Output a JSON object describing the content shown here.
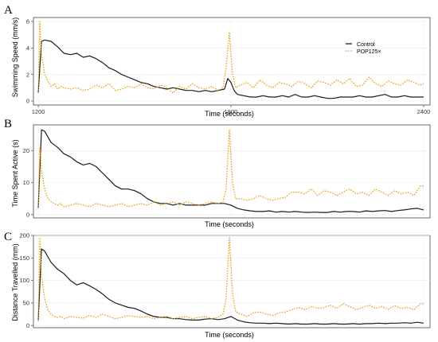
{
  "chart_data": [
    {
      "type": "line",
      "panel_label": "A",
      "xlabel": "Time (seconds)",
      "ylabel": "Swimming Speed (mm/s)",
      "xlim": [
        1185,
        2420
      ],
      "ylim": [
        -0.3,
        6.3
      ],
      "xticks": [
        1200,
        1800,
        2400
      ],
      "yticks": [
        0,
        2,
        4,
        6
      ],
      "grid": true,
      "legend_position": "top-right",
      "legend_entries": [
        "Control",
        "POP125×"
      ],
      "series": [
        {
          "name": "Control",
          "color": "#1a1a1a",
          "style": "solid",
          "x": [
            1200,
            1210,
            1220,
            1240,
            1260,
            1280,
            1300,
            1320,
            1340,
            1360,
            1380,
            1400,
            1420,
            1440,
            1460,
            1480,
            1500,
            1520,
            1540,
            1560,
            1580,
            1600,
            1620,
            1640,
            1660,
            1680,
            1700,
            1720,
            1740,
            1760,
            1780,
            1790,
            1800,
            1810,
            1820,
            1840,
            1860,
            1880,
            1900,
            1920,
            1940,
            1960,
            1980,
            2000,
            2020,
            2040,
            2060,
            2080,
            2100,
            2120,
            2140,
            2160,
            2180,
            2200,
            2220,
            2240,
            2260,
            2280,
            2300,
            2320,
            2340,
            2360,
            2380,
            2400
          ],
          "y": [
            0.6,
            4.5,
            4.6,
            4.5,
            4.1,
            3.6,
            3.5,
            3.6,
            3.3,
            3.4,
            3.2,
            2.9,
            2.5,
            2.3,
            2.0,
            1.8,
            1.6,
            1.4,
            1.3,
            1.1,
            1.0,
            0.9,
            1.0,
            0.9,
            0.8,
            0.8,
            0.7,
            0.8,
            0.7,
            0.8,
            0.9,
            1.7,
            1.4,
            0.8,
            0.5,
            0.4,
            0.3,
            0.3,
            0.4,
            0.3,
            0.3,
            0.4,
            0.3,
            0.5,
            0.3,
            0.3,
            0.4,
            0.3,
            0.2,
            0.2,
            0.3,
            0.3,
            0.3,
            0.4,
            0.3,
            0.3,
            0.4,
            0.5,
            0.3,
            0.3,
            0.4,
            0.3,
            0.3,
            0.3
          ]
        },
        {
          "name": "POP125×",
          "color": "#e8a317",
          "style": "dotted",
          "x": [
            1200,
            1205,
            1210,
            1220,
            1230,
            1240,
            1250,
            1260,
            1270,
            1280,
            1300,
            1320,
            1340,
            1360,
            1380,
            1400,
            1420,
            1440,
            1460,
            1480,
            1500,
            1520,
            1540,
            1560,
            1580,
            1600,
            1620,
            1640,
            1660,
            1680,
            1700,
            1720,
            1740,
            1760,
            1775,
            1785,
            1795,
            1805,
            1815,
            1830,
            1850,
            1870,
            1890,
            1910,
            1930,
            1950,
            1970,
            1990,
            2010,
            2030,
            2050,
            2070,
            2090,
            2110,
            2130,
            2150,
            2170,
            2190,
            2210,
            2230,
            2250,
            2270,
            2290,
            2310,
            2330,
            2350,
            2370,
            2390,
            2400
          ],
          "y": [
            0.6,
            6.0,
            3.5,
            2.0,
            1.5,
            1.1,
            1.3,
            0.9,
            1.1,
            1.0,
            0.9,
            1.0,
            0.8,
            0.9,
            1.2,
            1.0,
            1.3,
            0.8,
            0.9,
            1.1,
            1.0,
            1.3,
            1.0,
            0.9,
            1.2,
            1.0,
            0.6,
            1.1,
            0.9,
            1.3,
            1.0,
            0.9,
            1.1,
            0.8,
            1.0,
            2.5,
            5.2,
            2.0,
            1.0,
            1.2,
            1.4,
            1.0,
            1.6,
            1.2,
            1.0,
            1.4,
            1.3,
            1.1,
            1.5,
            1.3,
            1.0,
            1.5,
            1.4,
            1.2,
            1.6,
            1.3,
            1.7,
            1.1,
            1.2,
            1.8,
            1.3,
            1.1,
            1.5,
            1.3,
            1.2,
            1.6,
            1.4,
            1.2,
            1.3
          ]
        }
      ]
    },
    {
      "type": "line",
      "panel_label": "B",
      "xlabel": "Time (seconds)",
      "ylabel": "Time Spent Active (s)",
      "xlim": [
        1185,
        2420
      ],
      "ylim": [
        -1,
        28
      ],
      "xticks": [],
      "yticks": [
        0,
        10,
        20
      ],
      "grid": true,
      "series": [
        {
          "name": "Control",
          "color": "#1a1a1a",
          "style": "solid",
          "x": [
            1200,
            1210,
            1220,
            1240,
            1260,
            1280,
            1300,
            1320,
            1340,
            1360,
            1380,
            1400,
            1420,
            1440,
            1460,
            1480,
            1500,
            1520,
            1540,
            1560,
            1580,
            1600,
            1620,
            1640,
            1660,
            1680,
            1700,
            1720,
            1740,
            1760,
            1780,
            1800,
            1820,
            1840,
            1860,
            1880,
            1900,
            1920,
            1940,
            1960,
            1980,
            2000,
            2020,
            2040,
            2060,
            2080,
            2100,
            2120,
            2140,
            2160,
            2180,
            2200,
            2220,
            2240,
            2260,
            2280,
            2300,
            2320,
            2340,
            2360,
            2380,
            2400
          ],
          "y": [
            2,
            26.5,
            26,
            22.5,
            21,
            19,
            18,
            16.5,
            15.5,
            16,
            15,
            13,
            11,
            9,
            8,
            8,
            7.5,
            6.5,
            5,
            4,
            3.5,
            3.5,
            3,
            3.5,
            3,
            3,
            3,
            3,
            3.5,
            3.5,
            3.5,
            3,
            2,
            1.5,
            1.2,
            1,
            1,
            1.2,
            0.8,
            1,
            0.8,
            1,
            0.8,
            0.7,
            0.8,
            0.7,
            0.7,
            1,
            0.8,
            1,
            1,
            0.8,
            1.2,
            1,
            1.2,
            1.3,
            1,
            1.3,
            1.5,
            1.8,
            2,
            1.5
          ]
        },
        {
          "name": "POP125×",
          "color": "#e8a317",
          "style": "dotted",
          "x": [
            1200,
            1205,
            1210,
            1220,
            1230,
            1240,
            1250,
            1260,
            1270,
            1280,
            1300,
            1320,
            1340,
            1360,
            1380,
            1400,
            1420,
            1440,
            1460,
            1480,
            1500,
            1520,
            1540,
            1560,
            1580,
            1600,
            1620,
            1640,
            1660,
            1680,
            1700,
            1720,
            1740,
            1760,
            1775,
            1785,
            1795,
            1805,
            1815,
            1830,
            1850,
            1870,
            1890,
            1910,
            1930,
            1950,
            1970,
            1990,
            2010,
            2030,
            2050,
            2070,
            2090,
            2110,
            2130,
            2150,
            2170,
            2190,
            2210,
            2230,
            2250,
            2270,
            2290,
            2310,
            2330,
            2350,
            2370,
            2390,
            2400
          ],
          "y": [
            2,
            21,
            14,
            8,
            5,
            4,
            3.5,
            3,
            3.5,
            2.5,
            3,
            3.5,
            3,
            2.5,
            3.5,
            3,
            2.5,
            3,
            3.5,
            2.5,
            3,
            3.5,
            3,
            4,
            3,
            3.5,
            4,
            3,
            4,
            3.5,
            3,
            3.5,
            4,
            3.5,
            4,
            8,
            26.5,
            10,
            5,
            5,
            4.5,
            5,
            6,
            5,
            4.5,
            5,
            5.5,
            7,
            7,
            6.5,
            8,
            6,
            7.5,
            7,
            6,
            7,
            8,
            6.5,
            7,
            6,
            8,
            7,
            6,
            7.5,
            6.5,
            7,
            6,
            9,
            9
          ]
        }
      ]
    },
    {
      "type": "line",
      "panel_label": "C",
      "xlabel": "Time (seconds)",
      "ylabel": "Distance Travelled (mm)",
      "xlim": [
        1185,
        2420
      ],
      "ylim": [
        -5,
        200
      ],
      "xticks": [],
      "yticks": [
        0,
        50,
        100,
        150,
        200
      ],
      "grid": true,
      "series": [
        {
          "name": "Control",
          "color": "#1a1a1a",
          "style": "solid",
          "x": [
            1200,
            1210,
            1220,
            1240,
            1260,
            1280,
            1300,
            1320,
            1340,
            1360,
            1380,
            1400,
            1420,
            1440,
            1460,
            1480,
            1500,
            1520,
            1540,
            1560,
            1580,
            1600,
            1620,
            1640,
            1660,
            1680,
            1700,
            1720,
            1740,
            1760,
            1780,
            1800,
            1820,
            1840,
            1860,
            1880,
            1900,
            1920,
            1940,
            1960,
            1980,
            2000,
            2020,
            2040,
            2060,
            2080,
            2100,
            2120,
            2140,
            2160,
            2180,
            2200,
            2220,
            2240,
            2260,
            2280,
            2300,
            2320,
            2340,
            2360,
            2380,
            2400
          ],
          "y": [
            10,
            170,
            165,
            140,
            125,
            115,
            100,
            90,
            95,
            88,
            80,
            70,
            58,
            50,
            45,
            40,
            38,
            32,
            25,
            20,
            18,
            18,
            15,
            15,
            13,
            12,
            12,
            14,
            15,
            13,
            15,
            20,
            12,
            8,
            6,
            5,
            5,
            4,
            5,
            4,
            3,
            4,
            3,
            3,
            4,
            3,
            3,
            4,
            3,
            3,
            4,
            3,
            4,
            4,
            5,
            4,
            5,
            5,
            6,
            5,
            7,
            5
          ]
        },
        {
          "name": "POP125×",
          "color": "#e8a317",
          "style": "dotted",
          "x": [
            1200,
            1205,
            1210,
            1220,
            1230,
            1240,
            1250,
            1260,
            1270,
            1280,
            1300,
            1320,
            1340,
            1360,
            1380,
            1400,
            1420,
            1440,
            1460,
            1480,
            1500,
            1520,
            1540,
            1560,
            1580,
            1600,
            1620,
            1640,
            1660,
            1680,
            1700,
            1720,
            1740,
            1760,
            1775,
            1785,
            1795,
            1805,
            1815,
            1830,
            1850,
            1870,
            1890,
            1910,
            1930,
            1950,
            1970,
            1990,
            2010,
            2030,
            2050,
            2070,
            2090,
            2110,
            2130,
            2150,
            2170,
            2190,
            2210,
            2230,
            2250,
            2270,
            2290,
            2310,
            2330,
            2350,
            2370,
            2390,
            2400
          ],
          "y": [
            10,
            195,
            110,
            60,
            35,
            25,
            20,
            18,
            20,
            15,
            20,
            18,
            16,
            22,
            18,
            25,
            20,
            15,
            18,
            22,
            20,
            18,
            20,
            15,
            18,
            20,
            15,
            18,
            20,
            15,
            18,
            20,
            15,
            18,
            25,
            60,
            195,
            70,
            30,
            25,
            20,
            28,
            30,
            25,
            22,
            28,
            30,
            35,
            40,
            35,
            42,
            38,
            40,
            45,
            38,
            48,
            42,
            35,
            40,
            45,
            38,
            42,
            36,
            44,
            38,
            40,
            35,
            48,
            48
          ]
        }
      ]
    }
  ]
}
